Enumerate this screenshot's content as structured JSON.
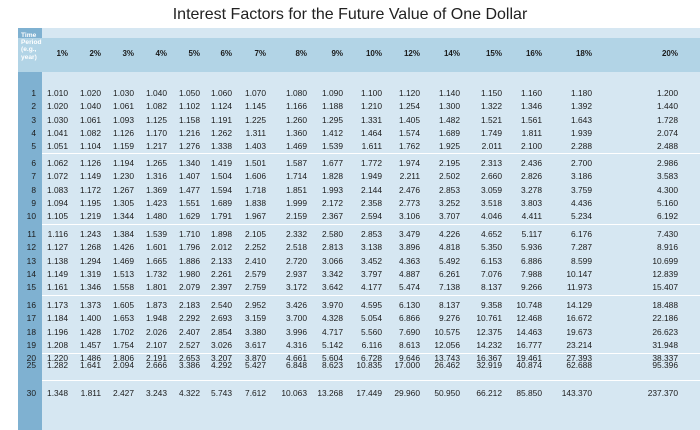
{
  "title": "Interest Factors for the Future Value of One Dollar",
  "corner_label": "Time\nPeriod\n(e.g.,\nyear)",
  "rates": [
    "1%",
    "2%",
    "3%",
    "4%",
    "5%",
    "6%",
    "7%",
    "8%",
    "9%",
    "10%",
    "12%",
    "14%",
    "15%",
    "16%",
    "18%",
    "20%"
  ],
  "rows": [
    {
      "p": "1",
      "v": [
        "1.010",
        "1.020",
        "1.030",
        "1.040",
        "1.050",
        "1.060",
        "1.070",
        "1.080",
        "1.090",
        "1.100",
        "1.120",
        "1.140",
        "1.150",
        "1.160",
        "1.180",
        "1.200"
      ]
    },
    {
      "p": "2",
      "v": [
        "1.020",
        "1.040",
        "1.061",
        "1.082",
        "1.102",
        "1.124",
        "1.145",
        "1.166",
        "1.188",
        "1.210",
        "1.254",
        "1.300",
        "1.322",
        "1.346",
        "1.392",
        "1.440"
      ]
    },
    {
      "p": "3",
      "v": [
        "1.030",
        "1.061",
        "1.093",
        "1.125",
        "1.158",
        "1.191",
        "1.225",
        "1.260",
        "1.295",
        "1.331",
        "1.405",
        "1.482",
        "1.521",
        "1.561",
        "1.643",
        "1.728"
      ]
    },
    {
      "p": "4",
      "v": [
        "1.041",
        "1.082",
        "1.126",
        "1.170",
        "1.216",
        "1.262",
        "1.311",
        "1.360",
        "1.412",
        "1.464",
        "1.574",
        "1.689",
        "1.749",
        "1.811",
        "1.939",
        "2.074"
      ]
    },
    {
      "p": "5",
      "v": [
        "1.051",
        "1.104",
        "1.159",
        "1.217",
        "1.276",
        "1.338",
        "1.403",
        "1.469",
        "1.539",
        "1.611",
        "1.762",
        "1.925",
        "2.011",
        "2.100",
        "2.288",
        "2.488"
      ]
    },
    {
      "p": "6",
      "v": [
        "1.062",
        "1.126",
        "1.194",
        "1.265",
        "1.340",
        "1.419",
        "1.501",
        "1.587",
        "1.677",
        "1.772",
        "1.974",
        "2.195",
        "2.313",
        "2.436",
        "2.700",
        "2.986"
      ]
    },
    {
      "p": "7",
      "v": [
        "1.072",
        "1.149",
        "1.230",
        "1.316",
        "1.407",
        "1.504",
        "1.606",
        "1.714",
        "1.828",
        "1.949",
        "2.211",
        "2.502",
        "2.660",
        "2.826",
        "3.186",
        "3.583"
      ]
    },
    {
      "p": "8",
      "v": [
        "1.083",
        "1.172",
        "1.267",
        "1.369",
        "1.477",
        "1.594",
        "1.718",
        "1.851",
        "1.993",
        "2.144",
        "2.476",
        "2.853",
        "3.059",
        "3.278",
        "3.759",
        "4.300"
      ]
    },
    {
      "p": "9",
      "v": [
        "1.094",
        "1.195",
        "1.305",
        "1.423",
        "1.551",
        "1.689",
        "1.838",
        "1.999",
        "2.172",
        "2.358",
        "2.773",
        "3.252",
        "3.518",
        "3.803",
        "4.436",
        "5.160"
      ]
    },
    {
      "p": "10",
      "v": [
        "1.105",
        "1.219",
        "1.344",
        "1.480",
        "1.629",
        "1.791",
        "1.967",
        "2.159",
        "2.367",
        "2.594",
        "3.106",
        "3.707",
        "4.046",
        "4.411",
        "5.234",
        "6.192"
      ]
    },
    {
      "p": "11",
      "v": [
        "1.116",
        "1.243",
        "1.384",
        "1.539",
        "1.710",
        "1.898",
        "2.105",
        "2.332",
        "2.580",
        "2.853",
        "3.479",
        "4.226",
        "4.652",
        "5.117",
        "6.176",
        "7.430"
      ]
    },
    {
      "p": "12",
      "v": [
        "1.127",
        "1.268",
        "1.426",
        "1.601",
        "1.796",
        "2.012",
        "2.252",
        "2.518",
        "2.813",
        "3.138",
        "3.896",
        "4.818",
        "5.350",
        "5.936",
        "7.287",
        "8.916"
      ]
    },
    {
      "p": "13",
      "v": [
        "1.138",
        "1.294",
        "1.469",
        "1.665",
        "1.886",
        "2.133",
        "2.410",
        "2.720",
        "3.066",
        "3.452",
        "4.363",
        "5.492",
        "6.153",
        "6.886",
        "8.599",
        "10.699"
      ]
    },
    {
      "p": "14",
      "v": [
        "1.149",
        "1.319",
        "1.513",
        "1.732",
        "1.980",
        "2.261",
        "2.579",
        "2.937",
        "3.342",
        "3.797",
        "4.887",
        "6.261",
        "7.076",
        "7.988",
        "10.147",
        "12.839"
      ]
    },
    {
      "p": "15",
      "v": [
        "1.161",
        "1.346",
        "1.558",
        "1.801",
        "2.079",
        "2.397",
        "2.759",
        "3.172",
        "3.642",
        "4.177",
        "5.474",
        "7.138",
        "8.137",
        "9.266",
        "11.973",
        "15.407"
      ]
    },
    {
      "p": "16",
      "v": [
        "1.173",
        "1.373",
        "1.605",
        "1.873",
        "2.183",
        "2.540",
        "2.952",
        "3.426",
        "3.970",
        "4.595",
        "6.130",
        "8.137",
        "9.358",
        "10.748",
        "14.129",
        "18.488"
      ]
    },
    {
      "p": "17",
      "v": [
        "1.184",
        "1.400",
        "1.653",
        "1.948",
        "2.292",
        "2.693",
        "3.159",
        "3.700",
        "4.328",
        "5.054",
        "6.866",
        "9.276",
        "10.761",
        "12.468",
        "16.672",
        "22.186"
      ]
    },
    {
      "p": "18",
      "v": [
        "1.196",
        "1.428",
        "1.702",
        "2.026",
        "2.407",
        "2.854",
        "3.380",
        "3.996",
        "4.717",
        "5.560",
        "7.690",
        "10.575",
        "12.375",
        "14.463",
        "19.673",
        "26.623"
      ]
    },
    {
      "p": "19",
      "v": [
        "1.208",
        "1.457",
        "1.754",
        "2.107",
        "2.527",
        "3.026",
        "3.617",
        "4.316",
        "5.142",
        "6.116",
        "8.613",
        "12.056",
        "14.232",
        "16.777",
        "23.214",
        "31.948"
      ]
    },
    {
      "p": "20",
      "v": [
        "1.220",
        "1.486",
        "1.806",
        "2.191",
        "2.653",
        "3.207",
        "3.870",
        "4.661",
        "5.604",
        "6.728",
        "9.646",
        "13.743",
        "16.367",
        "19.461",
        "27.393",
        "38.337"
      ]
    },
    {
      "p": "25",
      "v": [
        "1.282",
        "1.641",
        "2.094",
        "2.666",
        "3.386",
        "4.292",
        "5.427",
        "6.848",
        "8.623",
        "10.835",
        "17.000",
        "26.462",
        "32.919",
        "40.874",
        "62.688",
        "95.396"
      ]
    },
    {
      "p": "30",
      "v": [
        "1.348",
        "1.811",
        "2.427",
        "3.243",
        "4.322",
        "5.743",
        "7.612",
        "10.063",
        "13.268",
        "17.449",
        "29.960",
        "50.950",
        "66.212",
        "85.850",
        "143.370",
        "237.370"
      ]
    }
  ]
}
